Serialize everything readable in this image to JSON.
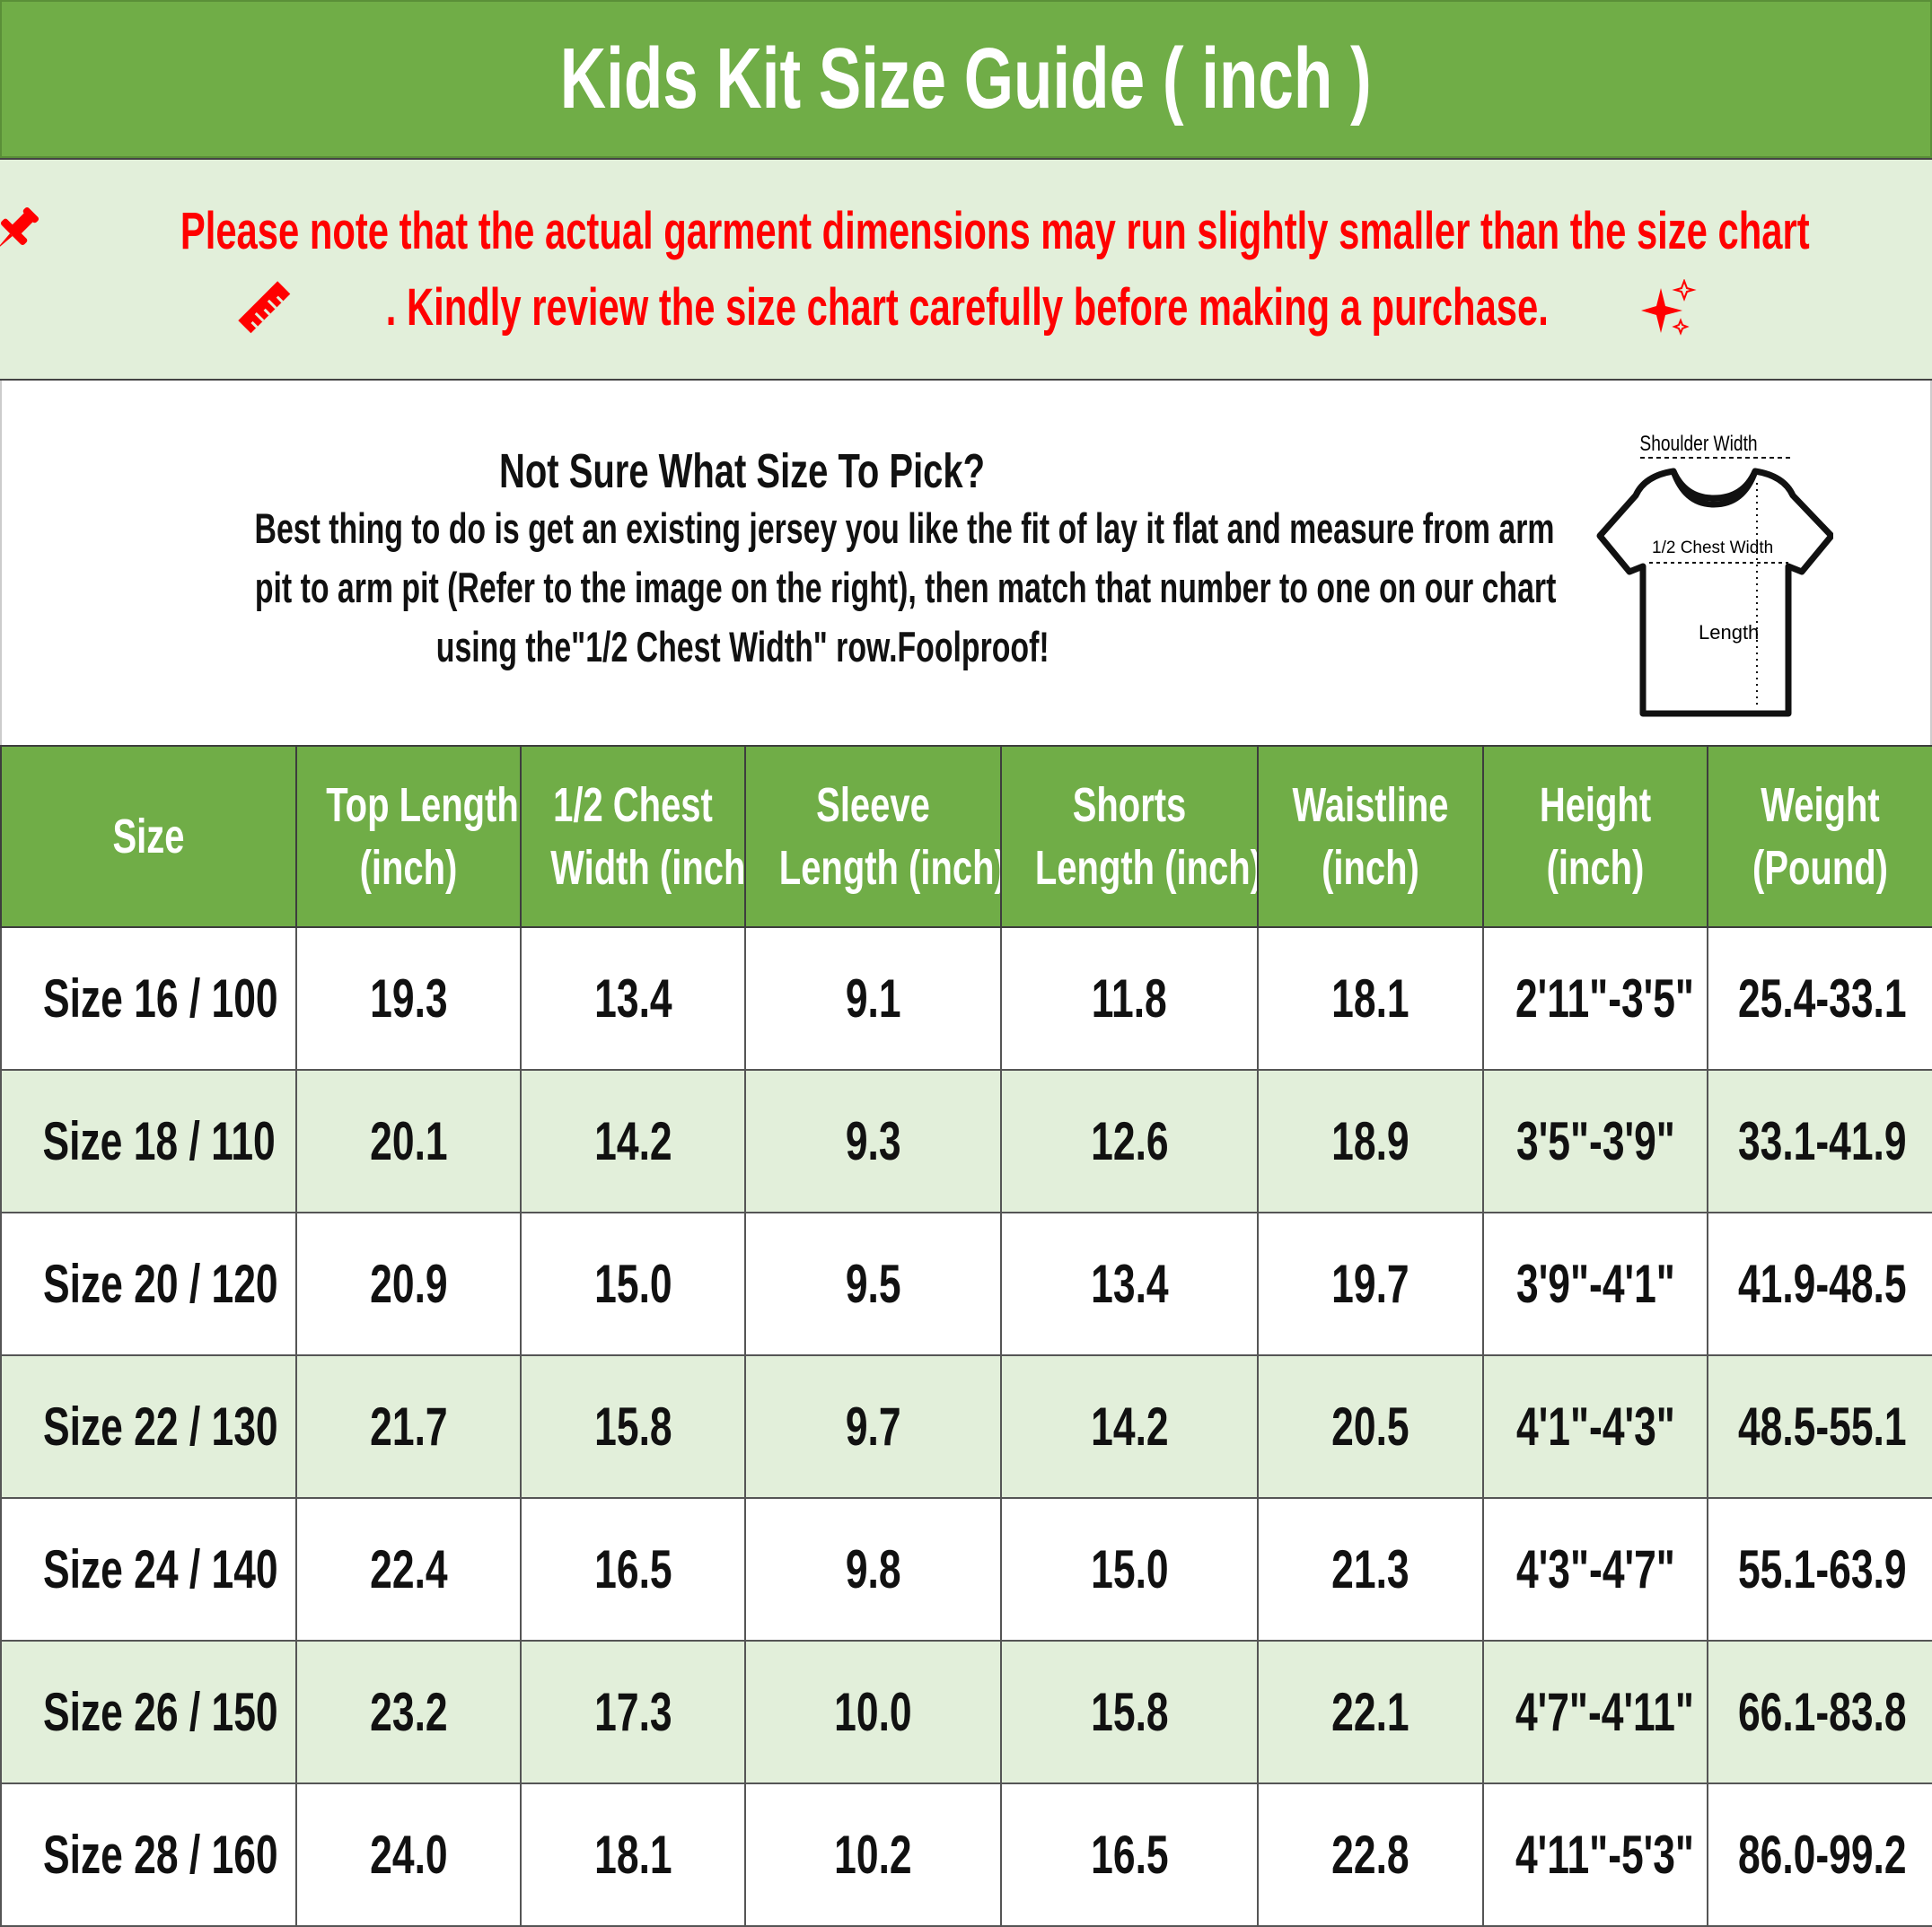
{
  "title": "Kids Kit Size Guide ( inch )",
  "notice": {
    "line1": "Please note that the actual garment dimensions may run slightly smaller than the size chart",
    "line2": ". Kindly review the size chart carefully before making a purchase.",
    "color": "#ff0000",
    "icons": [
      "pushpin-icon",
      "ruler-icon",
      "sparkles-icon"
    ]
  },
  "info": {
    "heading": "Not Sure What Size To Pick?",
    "body": [
      "Best thing to do is get an existing jersey you like the fit of lay it flat and measure from arm",
      "pit to arm pit (Refer to the image on the right), then match that number to one on our chart",
      "using the\"1/2 Chest Width\" row.Foolproof!"
    ],
    "diagram": {
      "shoulder": "Shoulder Width",
      "chest": "1/2 Chest Width",
      "length": "Length"
    }
  },
  "table": {
    "header_color": "#70ad47",
    "alt_row_color": "#e2efda",
    "headers": [
      [
        "Size"
      ],
      [
        "Top Length",
        "(inch)"
      ],
      [
        "1/2 Chest",
        "Width (inch)"
      ],
      [
        "Sleeve",
        "Length (inch)"
      ],
      [
        "Shorts",
        "Length (inch)"
      ],
      [
        "Waistline",
        "(inch)"
      ],
      [
        "Height",
        "(inch)"
      ],
      [
        "Weight",
        "(Pound)"
      ]
    ],
    "rows": [
      [
        "Size 16 / 100",
        "19.3",
        "13.4",
        "9.1",
        "11.8",
        "18.1",
        "2'11\"-3'5\"",
        "25.4-33.1"
      ],
      [
        "Size 18 / 110",
        "20.1",
        "14.2",
        "9.3",
        "12.6",
        "18.9",
        "3'5\"-3'9\"",
        "33.1-41.9"
      ],
      [
        "Size 20 / 120",
        "20.9",
        "15.0",
        "9.5",
        "13.4",
        "19.7",
        "3'9\"-4'1\"",
        "41.9-48.5"
      ],
      [
        "Size 22 / 130",
        "21.7",
        "15.8",
        "9.7",
        "14.2",
        "20.5",
        "4'1\"-4'3\"",
        "48.5-55.1"
      ],
      [
        "Size 24 / 140",
        "22.4",
        "16.5",
        "9.8",
        "15.0",
        "21.3",
        "4'3\"-4'7\"",
        "55.1-63.9"
      ],
      [
        "Size 26 / 150",
        "23.2",
        "17.3",
        "10.0",
        "15.8",
        "22.1",
        "4'7\"-4'11\"",
        "66.1-83.8"
      ],
      [
        "Size 28 / 160",
        "24.0",
        "18.1",
        "10.2",
        "16.5",
        "22.8",
        "4'11\"-5'3\"",
        "86.0-99.2"
      ]
    ]
  }
}
